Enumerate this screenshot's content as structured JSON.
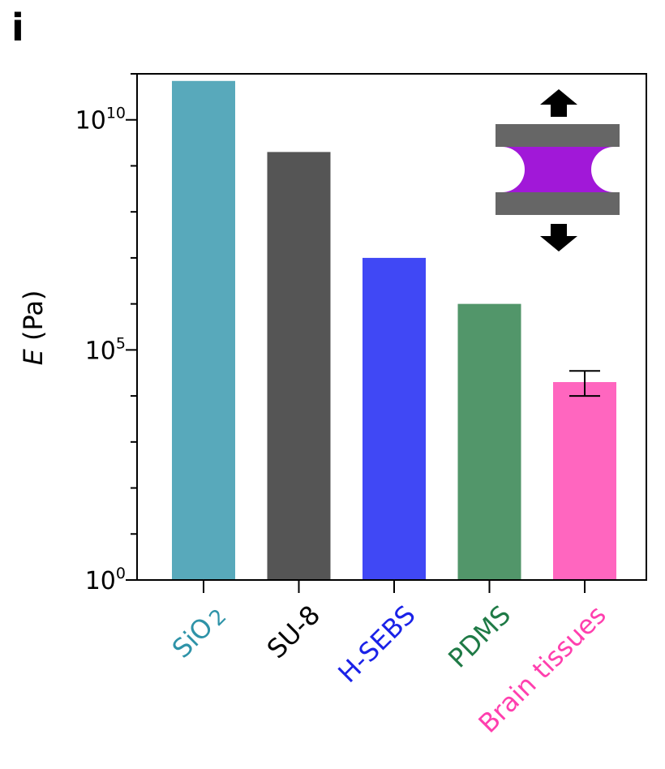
{
  "panel_label": "i",
  "chart_data": {
    "type": "bar",
    "categories": [
      "SiO2",
      "SU-8",
      "H-SEBS",
      "PDMS",
      "Brain tissues"
    ],
    "category_label_parts": [
      {
        "main": "SiO",
        "sub": "2"
      },
      {
        "main": "SU-8",
        "sub": ""
      },
      {
        "main": "H-SEBS",
        "sub": ""
      },
      {
        "main": "PDMS",
        "sub": ""
      },
      {
        "main": "Brain tissues",
        "sub": ""
      }
    ],
    "values": [
      70000000000,
      2000000000,
      10000000,
      1000000,
      20000
    ],
    "error_bars": [
      null,
      null,
      null,
      null,
      {
        "low": 10000,
        "high": 35000
      }
    ],
    "colors": [
      "#58a9bb",
      "#555555",
      "#4048f5",
      "#52966a",
      "#ff66bf"
    ],
    "label_colors": [
      "#2e93a8",
      "#000000",
      "#1a22e8",
      "#1f7a46",
      "#ff3fae"
    ],
    "ylabel_var": "E",
    "ylabel_unit": " (Pa)",
    "yscale": "log",
    "ylim": [
      1,
      100000000000
    ],
    "yticks": [
      {
        "value": 1,
        "base": "10",
        "exp": "0"
      },
      {
        "value": 100000,
        "base": "10",
        "exp": "5"
      },
      {
        "value": 10000000000,
        "base": "10",
        "exp": "10"
      }
    ],
    "inset_icon": "tensile-test-schematic",
    "inset_colors": {
      "plate": "#666666",
      "sample": "#a118d8",
      "arrow": "#000000"
    }
  }
}
